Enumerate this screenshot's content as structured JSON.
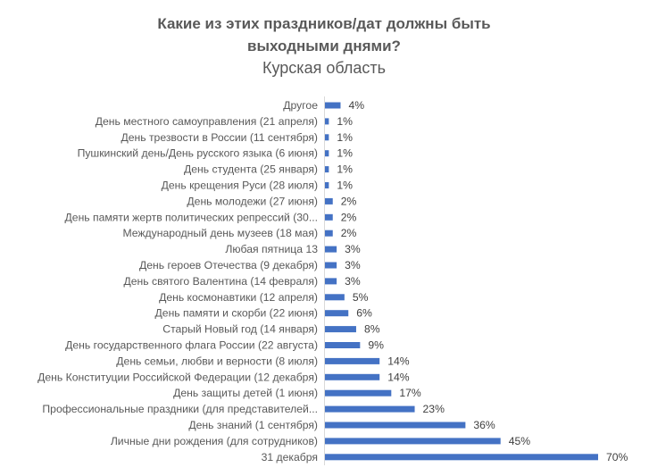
{
  "chart_data": {
    "type": "bar",
    "orientation": "horizontal",
    "title": [
      "Какие из этих праздников/дат должны быть",
      "выходными днями?"
    ],
    "subtitle": "Курская область",
    "xlabel": "",
    "ylabel": "",
    "value_suffix": "%",
    "xlim": [
      0,
      70
    ],
    "grid": false,
    "bar_color": "#4472C4",
    "categories": [
      "Другое",
      "День местного самоуправления (21 апреля)",
      "День трезвости в России (11 сентября)",
      "Пушкинский день/День русского языка (6 июня)",
      "День студента (25 января)",
      "День крещения Руси (28 июля)",
      "День молодежи (27 июня)",
      "День памяти жертв политических репрессий (30...",
      "Международный день музеев (18 мая)",
      "Любая пятница 13",
      "День героев Отечества (9 декабря)",
      "День святого Валентина (14 февраля)",
      "День космонавтики (12 апреля)",
      "День памяти и скорби (22 июня)",
      "Старый Новый год (14 января)",
      "День государственного флага России (22 августа)",
      "День семьи, любви и верности (8 июля)",
      "День Конституции Российской Федерации (12 декабря)",
      "День защиты детей (1 июня)",
      "Профессиональные праздники (для представителей...",
      "День знаний (1 сентября)",
      "Личные дни рождения (для сотрудников)",
      "31 декабря"
    ],
    "values": [
      4,
      1,
      1,
      1,
      1,
      1,
      2,
      2,
      2,
      3,
      3,
      3,
      5,
      6,
      8,
      9,
      14,
      14,
      17,
      23,
      36,
      45,
      70
    ]
  }
}
